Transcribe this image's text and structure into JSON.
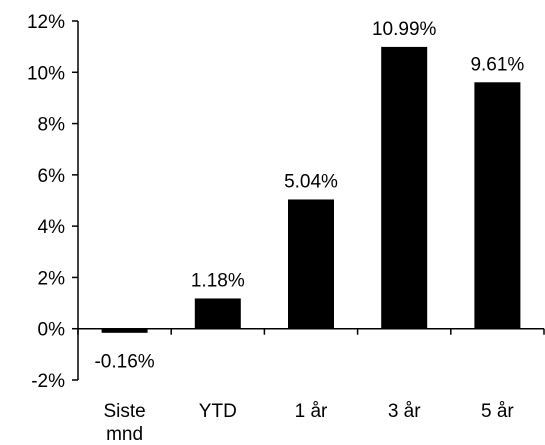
{
  "chart_data": {
    "type": "bar",
    "title": "",
    "xlabel": "",
    "ylabel": "",
    "categories": [
      [
        "Siste",
        "mnd"
      ],
      [
        "YTD"
      ],
      [
        "1 år"
      ],
      [
        "3 år"
      ],
      [
        "5 år"
      ]
    ],
    "values": [
      -0.16,
      1.18,
      5.04,
      10.99,
      9.61
    ],
    "data_labels": [
      "-0.16%",
      "1.18%",
      "5.04%",
      "10.99%",
      "9.61%"
    ],
    "ylim": [
      -2,
      12
    ],
    "yticks": [
      -2,
      0,
      2,
      4,
      6,
      8,
      10,
      12
    ],
    "ytick_labels": [
      "-2%",
      "0%",
      "2%",
      "4%",
      "6%",
      "8%",
      "10%",
      "12%"
    ],
    "bar_color": "#000000",
    "grid": false,
    "legend": "none"
  }
}
